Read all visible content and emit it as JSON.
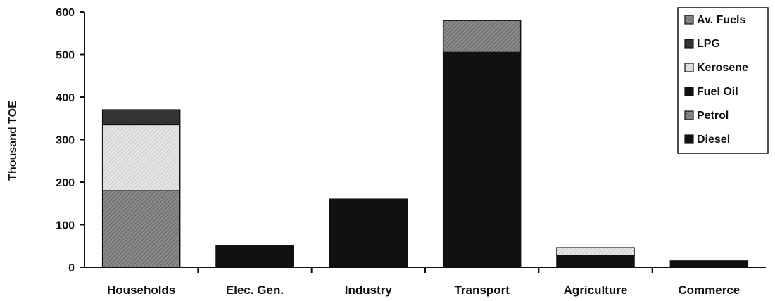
{
  "chart_data": {
    "type": "bar",
    "stacked": true,
    "ylabel": "Thousand TOE",
    "ylim": [
      0,
      600
    ],
    "yticks": [
      "0",
      "100",
      "200",
      "300",
      "400",
      "500",
      "600"
    ],
    "categories": [
      "Households",
      "Elec. Gen.",
      "Industry",
      "Transport",
      "Agriculture",
      "Commerce"
    ],
    "series": [
      {
        "name": "Diesel",
        "color": "#111111",
        "values": [
          0,
          50,
          160,
          505,
          28,
          15
        ]
      },
      {
        "name": "Petrol",
        "color": "#7a7a7a",
        "pattern": "hatch",
        "values": [
          180,
          0,
          0,
          0,
          0,
          0
        ]
      },
      {
        "name": "Fuel Oil",
        "color": "#111111",
        "values": [
          0,
          0,
          0,
          0,
          0,
          0
        ]
      },
      {
        "name": "Kerosene",
        "color": "#d8d8d8",
        "pattern": "hatch-light",
        "values": [
          155,
          0,
          0,
          0,
          18,
          0
        ]
      },
      {
        "name": "LPG",
        "color": "#333333",
        "values": [
          35,
          0,
          0,
          0,
          0,
          0
        ]
      },
      {
        "name": "Av. Fuels",
        "color": "#8c8c8c",
        "pattern": "hatch",
        "values": [
          0,
          0,
          0,
          75,
          0,
          0
        ]
      }
    ],
    "legend": {
      "position": "top-right",
      "order": [
        "Av. Fuels",
        "LPG",
        "Kerosene",
        "Fuel Oil",
        "Petrol",
        "Diesel"
      ]
    },
    "grid": false
  }
}
